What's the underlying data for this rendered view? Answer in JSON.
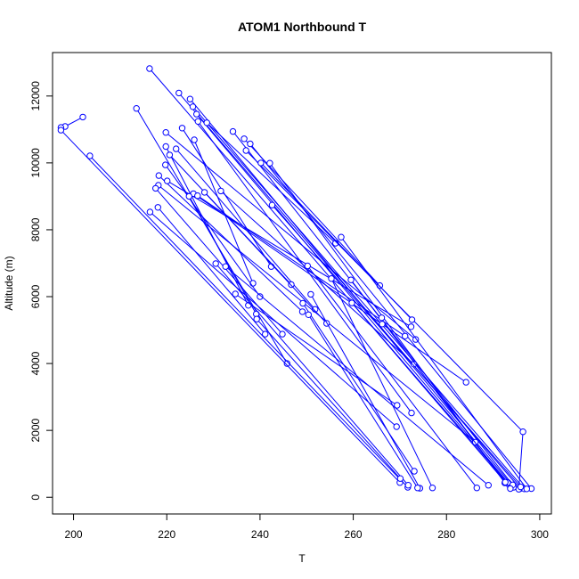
{
  "chart_data": {
    "type": "line",
    "title": "ATOM1 Northbound T",
    "xlabel": "T",
    "ylabel": "Altitude (m)",
    "xlim": [
      195.5,
      302.5
    ],
    "ylim": [
      -500,
      13300
    ],
    "x_ticks": [
      200,
      220,
      240,
      260,
      280,
      300
    ],
    "y_ticks": [
      0,
      2000,
      4000,
      6000,
      8000,
      10000,
      12000
    ],
    "series_color": "#0000ff",
    "grid": false,
    "legend": "none",
    "markers": "open-circle",
    "series": [
      {
        "points": [
          [
            216.3,
            12820
          ],
          [
            293.5,
            360
          ]
        ]
      },
      {
        "points": [
          [
            222.6,
            12090
          ],
          [
            295.8,
            260
          ]
        ]
      },
      {
        "points": [
          [
            225.0,
            11910
          ],
          [
            294.4,
            300
          ]
        ]
      },
      {
        "points": [
          [
            225.6,
            11680
          ],
          [
            296.7,
            250
          ]
        ]
      },
      {
        "points": [
          [
            213.5,
            11630
          ],
          [
            245.8,
            4000
          ]
        ]
      },
      {
        "points": [
          [
            226.4,
            11460
          ],
          [
            293.2,
            440
          ]
        ]
      },
      {
        "points": [
          [
            202.0,
            11370
          ],
          [
            198.2,
            11090
          ]
        ]
      },
      {
        "points": [
          [
            197.3,
            11060
          ],
          [
            197.3,
            10980
          ],
          [
            270.0,
            440
          ]
        ]
      },
      {
        "points": [
          [
            226.7,
            11240
          ],
          [
            272.5,
            2520
          ]
        ]
      },
      {
        "points": [
          [
            228.6,
            11200
          ],
          [
            256.2,
            7600
          ]
        ]
      },
      {
        "points": [
          [
            223.3,
            11040
          ],
          [
            242.4,
            6900
          ]
        ]
      },
      {
        "points": [
          [
            234.2,
            10940
          ],
          [
            294.2,
            370
          ]
        ]
      },
      {
        "points": [
          [
            219.8,
            10910
          ],
          [
            273.4,
            4720
          ]
        ]
      },
      {
        "points": [
          [
            236.6,
            10720
          ],
          [
            265.7,
            6330
          ]
        ]
      },
      {
        "points": [
          [
            237.9,
            10570
          ],
          [
            298.2,
            260
          ]
        ]
      },
      {
        "points": [
          [
            225.9,
            10690
          ],
          [
            238.5,
            6400
          ]
        ]
      },
      {
        "points": [
          [
            203.5,
            10210
          ],
          [
            271.7,
            300
          ]
        ]
      },
      {
        "points": [
          [
            219.8,
            10490
          ],
          [
            237.5,
            5740
          ]
        ]
      },
      {
        "points": [
          [
            237.0,
            10370
          ],
          [
            296.4,
            1960
          ],
          [
            295.5,
            240
          ]
        ]
      },
      {
        "points": [
          [
            222.0,
            10420
          ],
          [
            251.8,
            5620
          ]
        ]
      },
      {
        "points": [
          [
            220.6,
            10240
          ],
          [
            246.7,
            6360
          ]
        ]
      },
      {
        "points": [
          [
            240.2,
            10000
          ],
          [
            272.6,
            5310
          ]
        ]
      },
      {
        "points": [
          [
            242.1,
            9990
          ],
          [
            292.5,
            430
          ]
        ]
      },
      {
        "points": [
          [
            219.7,
            9940
          ],
          [
            240.0,
            6000
          ]
        ]
      },
      {
        "points": [
          [
            218.3,
            9620
          ],
          [
            249.1,
            5550
          ]
        ]
      },
      {
        "points": [
          [
            220.1,
            9460
          ],
          [
            272.4,
            5100
          ]
        ]
      },
      {
        "points": [
          [
            218.2,
            9330
          ],
          [
            286.2,
            1650
          ]
        ]
      },
      {
        "points": [
          [
            217.6,
            9240
          ],
          [
            244.8,
            4880
          ]
        ]
      },
      {
        "points": [
          [
            228.1,
            9120
          ],
          [
            254.3,
            5200
          ]
        ]
      },
      {
        "points": [
          [
            225.7,
            9080
          ],
          [
            284.2,
            3440
          ]
        ]
      },
      {
        "points": [
          [
            226.6,
            9020
          ],
          [
            271.1,
            4820
          ]
        ]
      },
      {
        "points": [
          [
            224.8,
            9000
          ],
          [
            239.2,
            5480
          ]
        ]
      },
      {
        "points": [
          [
            231.6,
            9160
          ],
          [
            273.0,
            3980
          ]
        ]
      },
      {
        "points": [
          [
            242.6,
            8740
          ],
          [
            295.9,
            310
          ]
        ]
      },
      {
        "points": [
          [
            216.4,
            8530
          ],
          [
            269.3,
            2110
          ]
        ]
      },
      {
        "points": [
          [
            218.1,
            8670
          ],
          [
            241.1,
            4880
          ]
        ]
      },
      {
        "points": [
          [
            257.4,
            7780
          ],
          [
            297.2,
            250
          ]
        ]
      },
      {
        "points": [
          [
            230.5,
            6990
          ],
          [
            271.8,
            360
          ]
        ]
      },
      {
        "points": [
          [
            232.6,
            6900
          ],
          [
            289.0,
            360
          ]
        ]
      },
      {
        "points": [
          [
            250.2,
            6920
          ],
          [
            286.5,
            280
          ]
        ]
      },
      {
        "points": [
          [
            255.3,
            6540
          ],
          [
            277.0,
            280
          ]
        ]
      },
      {
        "points": [
          [
            259.5,
            6500
          ],
          [
            293.7,
            260
          ]
        ]
      },
      {
        "points": [
          [
            234.7,
            6080
          ],
          [
            269.4,
            2750
          ]
        ]
      },
      {
        "points": [
          [
            250.9,
            6070
          ],
          [
            274.3,
            270
          ]
        ]
      },
      {
        "points": [
          [
            249.2,
            5800
          ],
          [
            273.1,
            780
          ]
        ]
      },
      {
        "points": [
          [
            259.7,
            5810
          ],
          [
            292.6,
            450
          ]
        ]
      },
      {
        "points": [
          [
            266.1,
            5370
          ],
          [
            266.2,
            5180
          ]
        ]
      },
      {
        "points": [
          [
            250.4,
            5460
          ],
          [
            273.8,
            280
          ]
        ]
      },
      {
        "points": [
          [
            239.3,
            5330
          ],
          [
            270.1,
            560
          ]
        ]
      }
    ]
  }
}
